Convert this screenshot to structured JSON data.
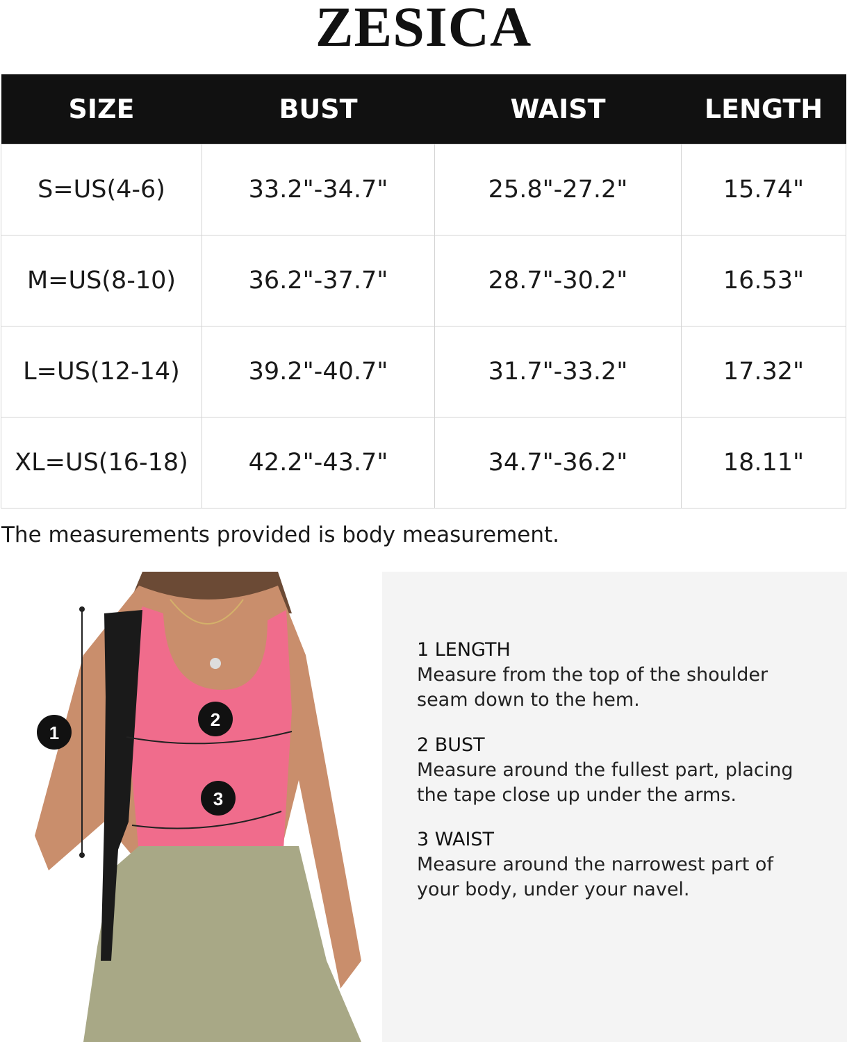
{
  "brand": "ZESICA",
  "table": {
    "headers": [
      "SIZE",
      "BUST",
      "WAIST",
      "LENGTH"
    ],
    "rows": [
      [
        "S=US(4-6)",
        "33.2\"-34.7\"",
        "25.8\"-27.2\"",
        "15.74\""
      ],
      [
        "M=US(8-10)",
        "36.2\"-37.7\"",
        "28.7\"-30.2\"",
        "16.53\""
      ],
      [
        "L=US(12-14)",
        "39.2\"-40.7\"",
        "31.7\"-33.2\"",
        "17.32\""
      ],
      [
        "XL=US(16-18)",
        "42.2\"-43.7\"",
        "34.7\"-36.2\"",
        "18.11\""
      ]
    ]
  },
  "note": "The measurements provided is body measurement.",
  "markers": [
    "1",
    "2",
    "3"
  ],
  "guide": [
    {
      "title": "1  LENGTH",
      "lines": [
        "Measure from the top of the shoulder",
        "seam down to the hem."
      ]
    },
    {
      "title": "2 BUST",
      "lines": [
        "Measure around the fullest part, placing",
        "the tape close up under the arms."
      ]
    },
    {
      "title": "3 WAIST",
      "lines": [
        "Measure around the narrowest part of",
        "your body, under your navel."
      ]
    }
  ],
  "colors": {
    "header_bg": "#111111",
    "top": "#f06c8c",
    "pants": "#a8a886",
    "panel_bg": "#f4f4f4"
  }
}
